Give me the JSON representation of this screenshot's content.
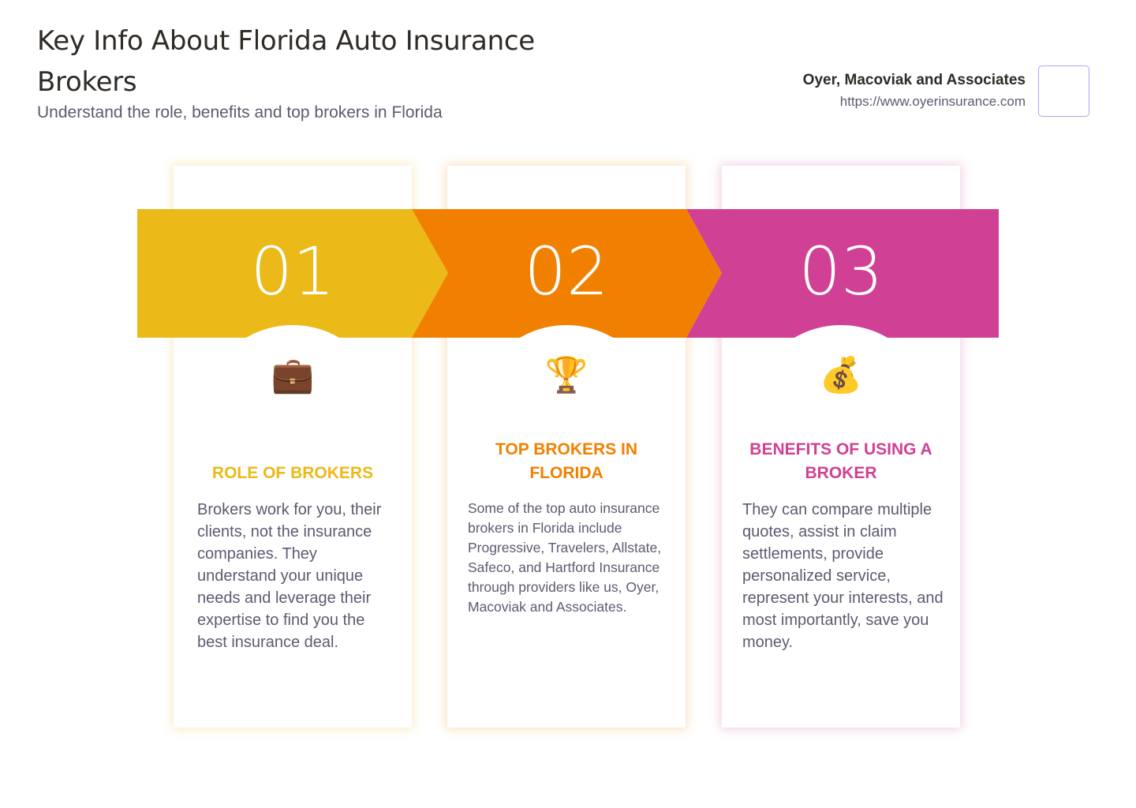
{
  "header": {
    "title": "Key Info About Florida Auto Insurance Brokers",
    "subtitle": "Understand the role, benefits and top brokers in Florida"
  },
  "brand": {
    "name": "Oyer, Macoviak and Associates",
    "url": "https://www.oyerinsurance.com"
  },
  "colors": {
    "step1": "#ebb918",
    "step2": "#f28000",
    "step3": "#d04094"
  },
  "steps": [
    {
      "number": "01",
      "icon": "briefcase-icon",
      "glyph": "💼",
      "heading": "ROLE OF BROKERS",
      "text": "Brokers work for you, their clients, not the insurance companies. They understand your unique needs and leverage their expertise to find you the best insurance deal."
    },
    {
      "number": "02",
      "icon": "trophy-icon",
      "glyph": "🏆",
      "heading": "TOP BROKERS IN FLORIDA",
      "text": "Some of the top auto insurance brokers in Florida include Progressive, Travelers, Allstate, Safeco, and Hartford Insurance through providers like us, Oyer, Macoviak and Associates."
    },
    {
      "number": "03",
      "icon": "money-bag-icon",
      "glyph": "💰",
      "heading": "BENEFITS OF USING A BROKER",
      "text": "They can compare multiple quotes, assist in claim settlements, provide personalized service, represent your interests, and most importantly, save you money."
    }
  ]
}
